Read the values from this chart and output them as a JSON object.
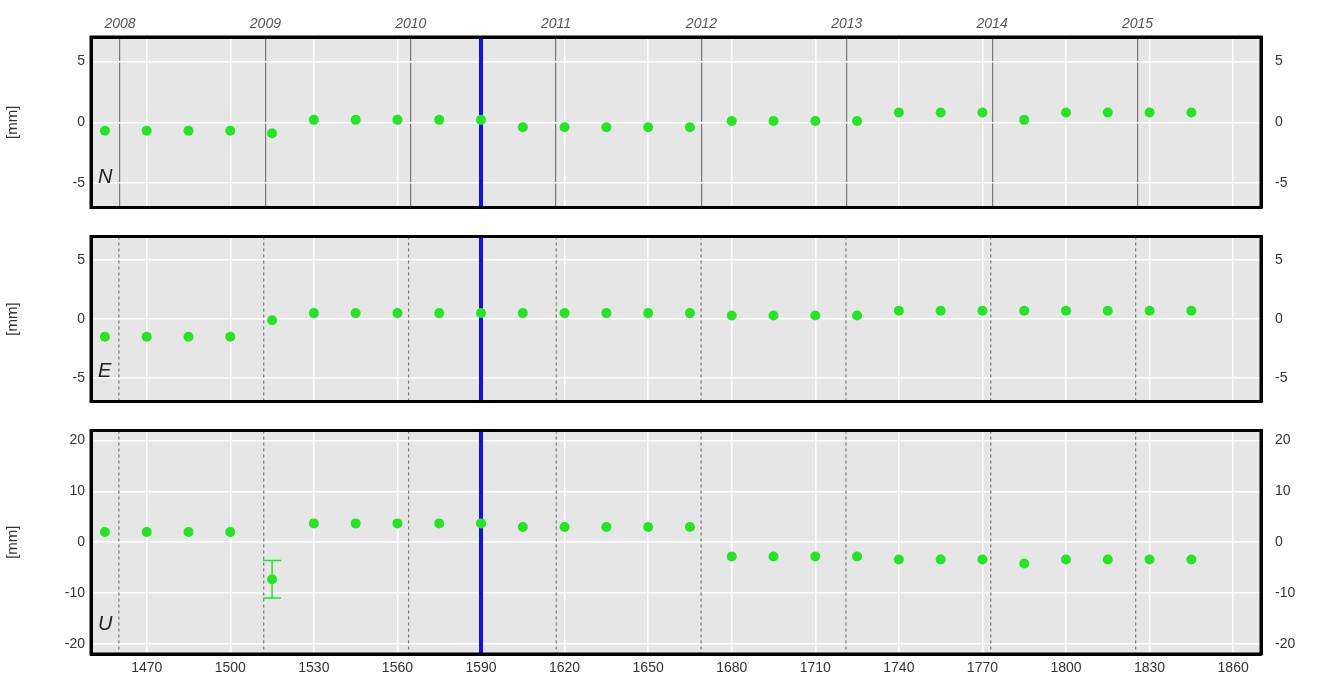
{
  "chart_data": [
    {
      "type": "scatter",
      "ylabel": "[mm]",
      "annotations": [
        "N"
      ],
      "marker": "circle",
      "grid": true,
      "tick_labels": "y",
      "x": [
        1455,
        1470,
        1485,
        1500,
        1515,
        1530,
        1545,
        1560,
        1575,
        1590,
        1605,
        1620,
        1635,
        1650,
        1665,
        1680,
        1695,
        1710,
        1725,
        1740,
        1755,
        1770,
        1785,
        1800,
        1815,
        1830,
        1845
      ],
      "series": [
        {
          "color": "#22e622",
          "values": [
            -0.7,
            -0.7,
            -0.7,
            -0.7,
            -0.9,
            0.2,
            0.2,
            0.2,
            0.2,
            0.2,
            -0.4,
            -0.4,
            -0.4,
            -0.4,
            -0.4,
            0.1,
            0.1,
            0.1,
            0.1,
            0.8,
            0.8,
            0.8,
            0.2,
            0.8,
            0.8,
            0.8,
            0.8
          ]
        }
      ],
      "xlim": [
        1450,
        1870
      ],
      "xticks": [
        1470,
        1500,
        1530,
        1560,
        1590,
        1620,
        1650,
        1680,
        1710,
        1740,
        1770,
        1800,
        1830,
        1860
      ],
      "x2lim": [
        2007.8,
        2015.85
      ],
      "x2ticks": [
        2008,
        2009,
        2010,
        2011,
        2012,
        2013,
        2014,
        2015
      ],
      "ylim": [
        -7,
        7
      ],
      "yticks": [
        -5,
        0,
        5
      ],
      "y2lim": [
        -7,
        7
      ],
      "y2ticks": [
        -5,
        0,
        5
      ],
      "ref_lines": [
        {
          "axis": "x",
          "value": 1590,
          "color": "#1010f0",
          "line_style": "solid"
        }
      ]
    },
    {
      "type": "scatter",
      "ylabel": "[mm]",
      "annotations": [
        "E"
      ],
      "marker": "circle",
      "grid": true,
      "tick_labels": "y",
      "x": [
        1455,
        1470,
        1485,
        1500,
        1515,
        1530,
        1545,
        1560,
        1575,
        1590,
        1605,
        1620,
        1635,
        1650,
        1665,
        1680,
        1695,
        1710,
        1725,
        1740,
        1755,
        1770,
        1785,
        1800,
        1815,
        1830,
        1845
      ],
      "series": [
        {
          "color": "#22e622",
          "values": [
            -1.5,
            -1.5,
            -1.5,
            -1.5,
            -0.1,
            0.5,
            0.5,
            0.5,
            0.5,
            0.5,
            0.5,
            0.5,
            0.5,
            0.5,
            0.5,
            0.3,
            0.3,
            0.3,
            0.3,
            0.7,
            0.7,
            0.7,
            0.7,
            0.7,
            0.7,
            0.7,
            0.7
          ]
        }
      ],
      "xlim": [
        1450,
        1870
      ],
      "xticks": [
        1470,
        1500,
        1530,
        1560,
        1590,
        1620,
        1650,
        1680,
        1710,
        1740,
        1770,
        1800,
        1830,
        1860
      ],
      "ylim": [
        -7,
        7
      ],
      "yticks": [
        -5,
        0,
        5
      ],
      "y2lim": [
        -7,
        7
      ],
      "y2ticks": [
        -5,
        0,
        5
      ],
      "ref_lines": [
        {
          "axis": "x",
          "value": 1460,
          "color": "#777777",
          "line_style": "dashed"
        },
        {
          "axis": "x",
          "value": 1512,
          "color": "#777777",
          "line_style": "dashed"
        },
        {
          "axis": "x",
          "value": 1564,
          "color": "#777777",
          "line_style": "dashed"
        },
        {
          "axis": "x",
          "value": 1617,
          "color": "#777777",
          "line_style": "dashed"
        },
        {
          "axis": "x",
          "value": 1669,
          "color": "#777777",
          "line_style": "dashed"
        },
        {
          "axis": "x",
          "value": 1721,
          "color": "#777777",
          "line_style": "dashed"
        },
        {
          "axis": "x",
          "value": 1773,
          "color": "#777777",
          "line_style": "dashed"
        },
        {
          "axis": "x",
          "value": 1825,
          "color": "#777777",
          "line_style": "dashed"
        },
        {
          "axis": "x",
          "value": 1590,
          "color": "#1010f0",
          "line_style": "solid"
        }
      ]
    },
    {
      "type": "scatter",
      "ylabel": "[mm]",
      "annotations": [
        "U"
      ],
      "marker": "circle",
      "grid": true,
      "x": [
        1455,
        1470,
        1485,
        1500,
        1515,
        1530,
        1545,
        1560,
        1575,
        1590,
        1605,
        1620,
        1635,
        1650,
        1665,
        1680,
        1695,
        1710,
        1725,
        1740,
        1755,
        1770,
        1785,
        1800,
        1815,
        1830,
        1845
      ],
      "series": [
        {
          "color": "#22e622",
          "values": [
            2,
            2,
            2,
            2,
            -7.3,
            3.7,
            3.7,
            3.7,
            3.7,
            3.7,
            3,
            3,
            3,
            3,
            3,
            -2.8,
            -2.8,
            -2.8,
            -2.8,
            -3.4,
            -3.4,
            -3.4,
            -4.2,
            -3.4,
            -3.4,
            -3.4,
            -3.4
          ],
          "errors": [
            null,
            null,
            null,
            null,
            3.7,
            null,
            null,
            null,
            null,
            null,
            null,
            null,
            null,
            null,
            null,
            null,
            null,
            null,
            null,
            null,
            null,
            null,
            null,
            null,
            null,
            null,
            null
          ]
        }
      ],
      "xlim": [
        1450,
        1870
      ],
      "xticks": [
        1470,
        1500,
        1530,
        1560,
        1590,
        1620,
        1650,
        1680,
        1710,
        1740,
        1770,
        1800,
        1830,
        1860
      ],
      "ylim": [
        -22,
        22
      ],
      "yticks": [
        -20,
        -10,
        0,
        10,
        20
      ],
      "y2lim": [
        -22,
        22
      ],
      "y2ticks": [
        -20,
        -10,
        0,
        10,
        20
      ],
      "ref_lines": [
        {
          "axis": "x",
          "value": 1460,
          "color": "#777777",
          "line_style": "dashed"
        },
        {
          "axis": "x",
          "value": 1512,
          "color": "#777777",
          "line_style": "dashed"
        },
        {
          "axis": "x",
          "value": 1564,
          "color": "#777777",
          "line_style": "dashed"
        },
        {
          "axis": "x",
          "value": 1617,
          "color": "#777777",
          "line_style": "dashed"
        },
        {
          "axis": "x",
          "value": 1669,
          "color": "#777777",
          "line_style": "dashed"
        },
        {
          "axis": "x",
          "value": 1721,
          "color": "#777777",
          "line_style": "dashed"
        },
        {
          "axis": "x",
          "value": 1773,
          "color": "#777777",
          "line_style": "dashed"
        },
        {
          "axis": "x",
          "value": 1825,
          "color": "#777777",
          "line_style": "dashed"
        },
        {
          "axis": "x",
          "value": 1590,
          "color": "#1010f0",
          "line_style": "solid"
        }
      ]
    }
  ]
}
